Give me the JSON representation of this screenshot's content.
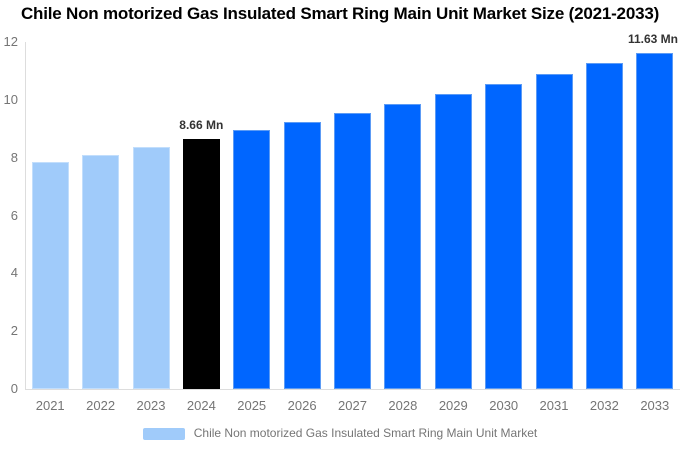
{
  "chart_data": {
    "type": "bar",
    "title": "Chile Non motorized Gas Insulated Smart Ring Main Unit Market Size (2021-2033)",
    "unit": "Mn",
    "categories": [
      "2021",
      "2022",
      "2023",
      "2024",
      "2025",
      "2026",
      "2027",
      "2028",
      "2029",
      "2030",
      "2031",
      "2032",
      "2033"
    ],
    "series": [
      {
        "name": "Chile Non motorized Gas Insulated Smart Ring Main Unit Market",
        "values": [
          7.85,
          8.11,
          8.38,
          8.66,
          8.95,
          9.25,
          9.56,
          9.87,
          10.2,
          10.54,
          10.89,
          11.26,
          11.63
        ]
      }
    ],
    "ylim": [
      0,
      12
    ],
    "yticks": [
      0,
      2,
      4,
      6,
      8,
      10,
      12
    ],
    "grid": false,
    "legend_position": "bottom",
    "annotations": [
      {
        "category": "2024",
        "text": "8.66 Mn"
      },
      {
        "category": "2033",
        "text": "11.63 Mn"
      }
    ],
    "bar_colors": [
      "#A0CBFA",
      "#A0CBFA",
      "#A0CBFA",
      "#000000",
      "#0066FF",
      "#0066FF",
      "#0066FF",
      "#0066FF",
      "#0066FF",
      "#0066FF",
      "#0066FF",
      "#0066FF",
      "#0066FF"
    ],
    "bar_border_colors": [
      "#C2DEFC",
      "#C2DEFC",
      "#C2DEFC",
      "#000000",
      "#5C9BF5",
      "#5C9BF5",
      "#5C9BF5",
      "#5C9BF5",
      "#5C9BF5",
      "#5C9BF5",
      "#5C9BF5",
      "#5C9BF5",
      "#5C9BF5"
    ],
    "legend": {
      "label": "Chile Non motorized Gas Insulated Smart Ring Main Unit Market",
      "swatch_color": "#A0CBFA"
    },
    "colors": {
      "historical": "#A0CBFA",
      "highlight": "#000000",
      "forecast": "#0066FF",
      "axis": "#DDDDDD",
      "tick_label": "#757575",
      "annotation": "#333333",
      "title": "#000000"
    }
  }
}
